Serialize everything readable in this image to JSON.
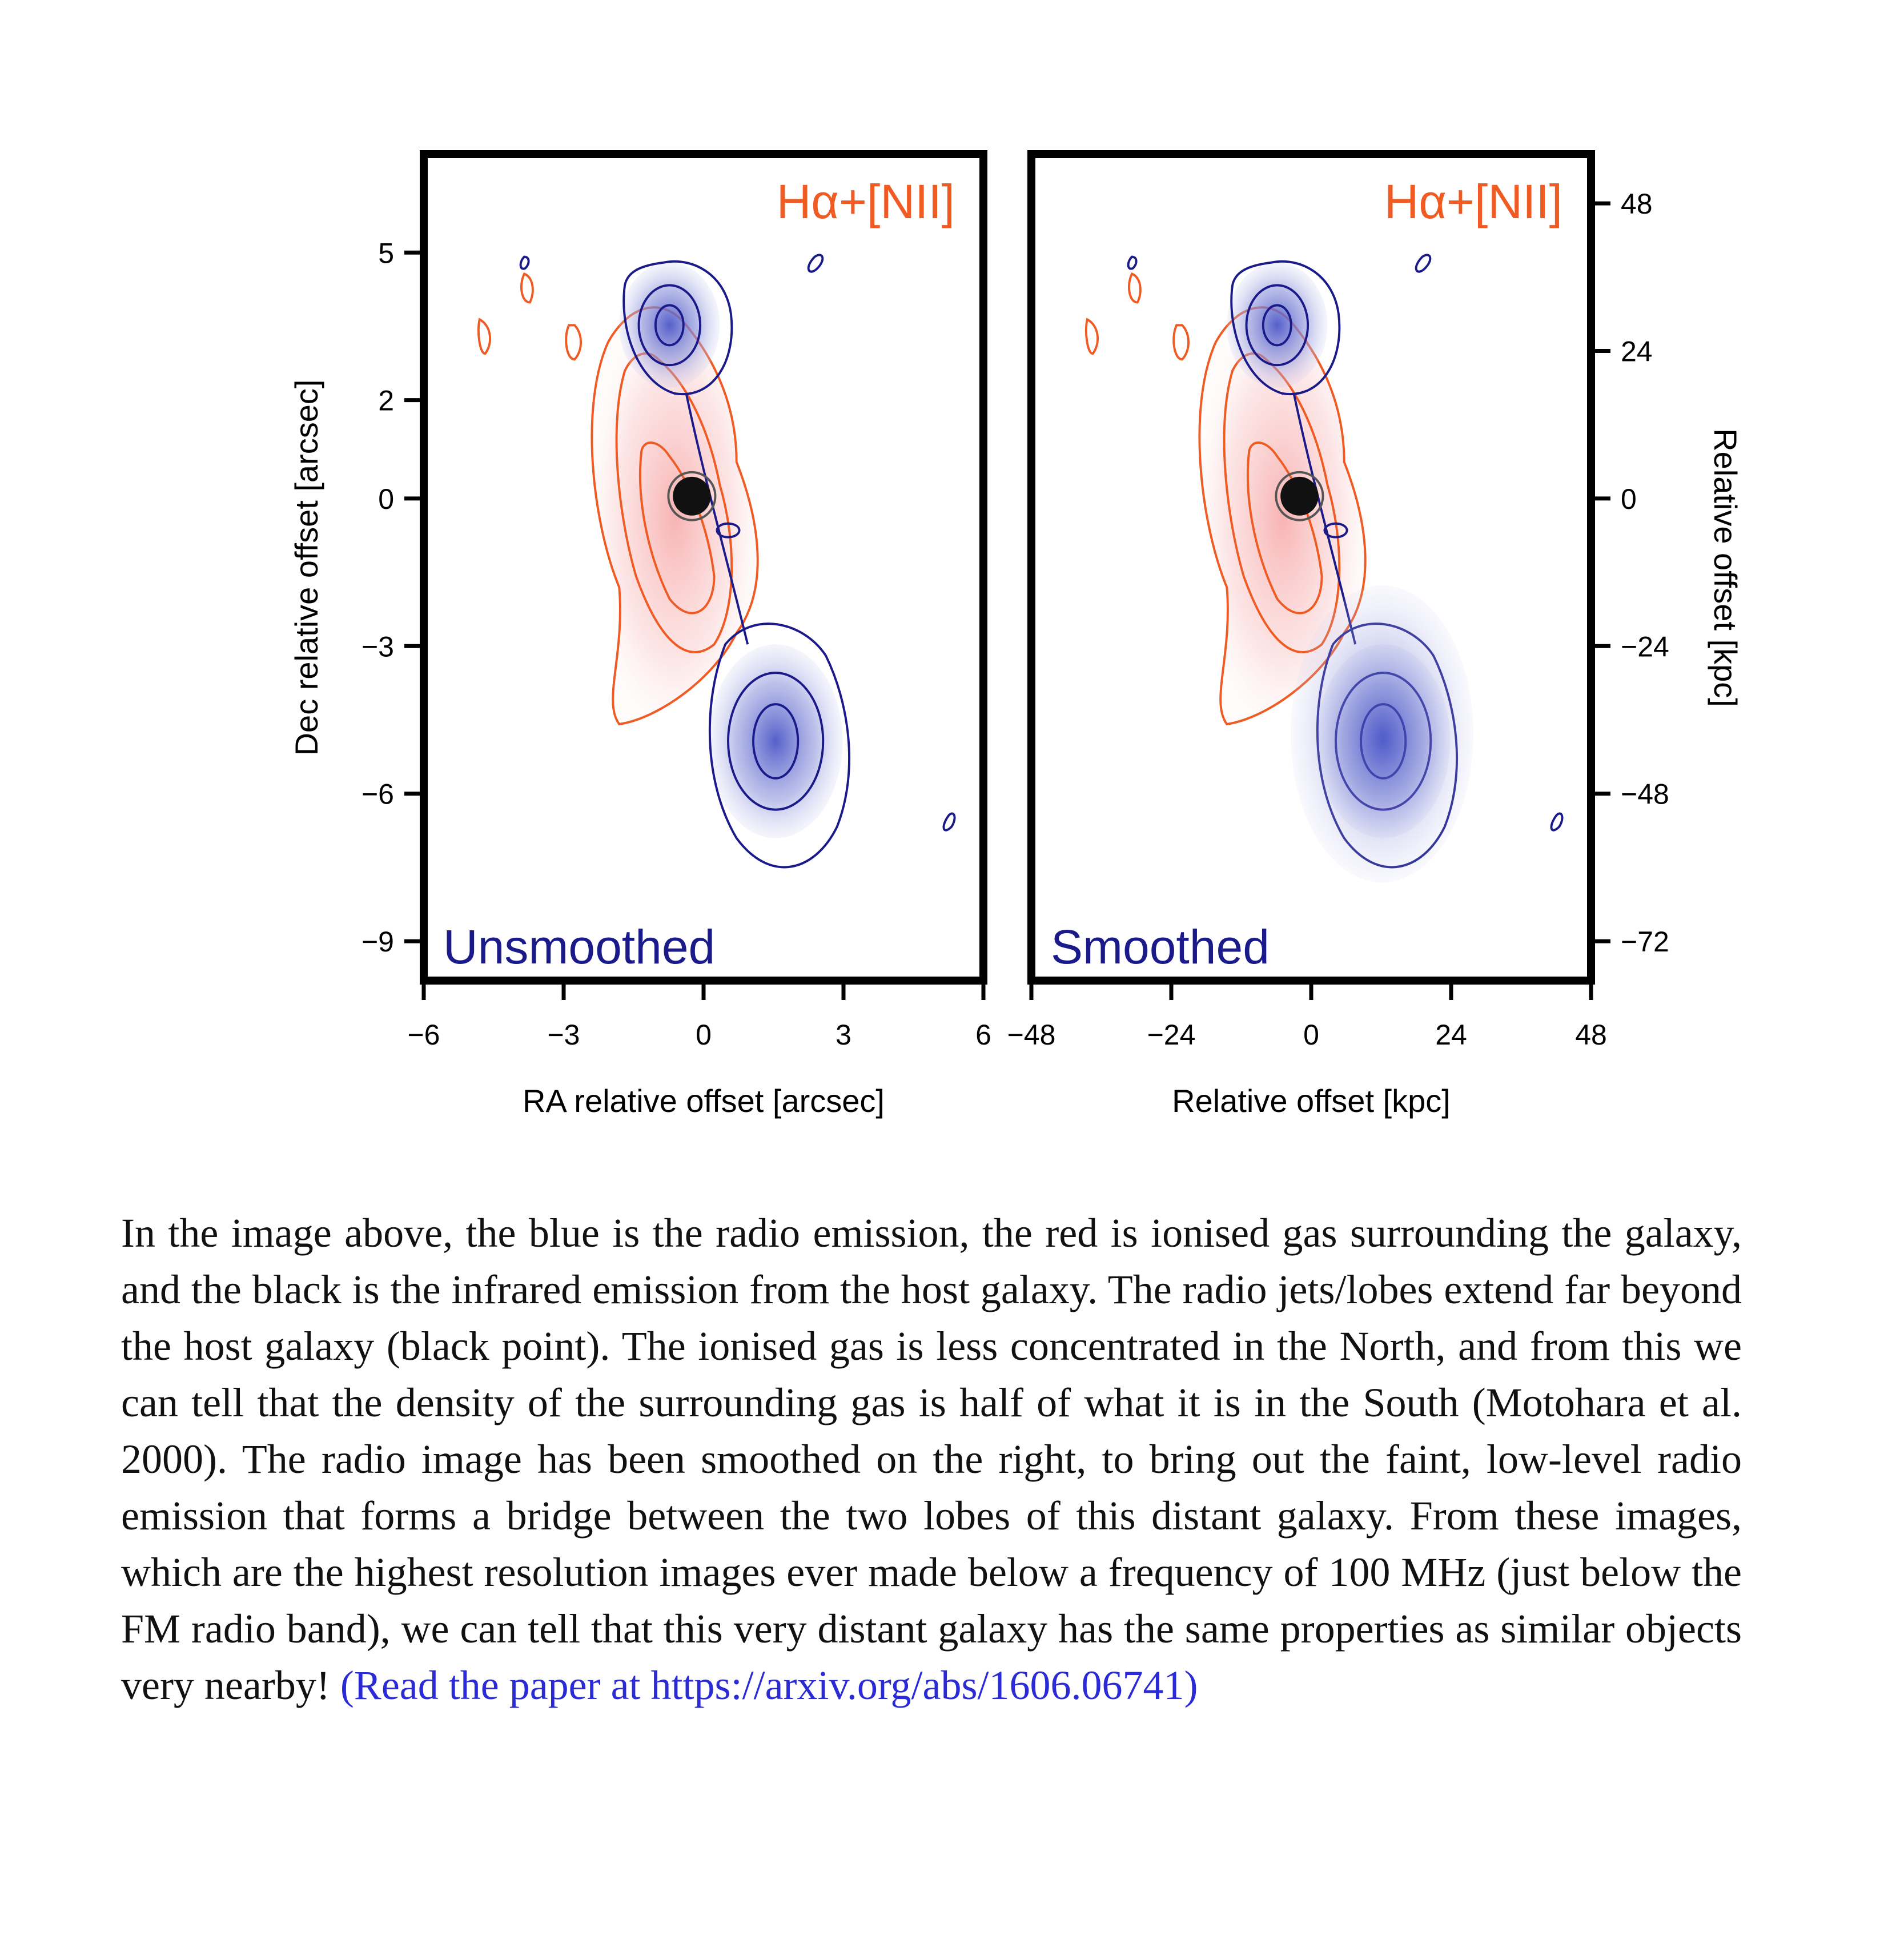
{
  "figure": {
    "panels": [
      {
        "id": "unsmoothed",
        "label": "Unsmoothed",
        "line_label": "Hα+[NII]",
        "x_axis": {
          "label": "RA relative offset [arcsec]",
          "ticks": [
            "−6",
            "−3",
            "0",
            "3",
            "6"
          ],
          "range": [
            -6,
            6
          ]
        },
        "y_axis": {
          "label": "Dec relative offset [arcsec]",
          "ticks": [
            "5",
            "2",
            "0",
            "−3",
            "−6",
            "−9"
          ],
          "range": [
            -9.8,
            7.0
          ]
        }
      },
      {
        "id": "smoothed",
        "label": "Smoothed",
        "line_label": "Hα+[NII]",
        "x_axis": {
          "label": "Relative offset [kpc]",
          "ticks": [
            "−48",
            "−24",
            "0",
            "24",
            "48"
          ],
          "range": [
            -48,
            48
          ]
        },
        "y_axis": {
          "label": "Relative offset [kpc]",
          "ticks": [
            "48",
            "24",
            "0",
            "−24",
            "−48",
            "−72"
          ],
          "range": [
            -78.4,
            56
          ]
        }
      }
    ],
    "colors": {
      "radio": "#1a1a8a",
      "ionised_gas": "#f05a23",
      "host_galaxy": "#000000"
    }
  },
  "caption": {
    "text": "In the image above, the blue is the radio emission, the red is ionised gas surrounding the galaxy, and the black is the infrared emission from the host galaxy. The radio jets/lobes extend far beyond the host galaxy (black point). The ionised gas is less concentrated in the North, and from this we can tell that the density of the surrounding gas is half of what it is in the South (Motohara et al. 2000). The radio image has been smoothed on the right, to bring out the faint, low-level radio emission that forms a bridge between the two lobes of this distant galaxy. From these images, which are the highest resolution images ever made below a frequency of 100 MHz (just below the FM radio band), we can tell that this very distant galaxy has the same properties as similar objects very nearby!",
    "link_text": "(Read the paper at https://arxiv.org/abs/1606.06741)"
  }
}
